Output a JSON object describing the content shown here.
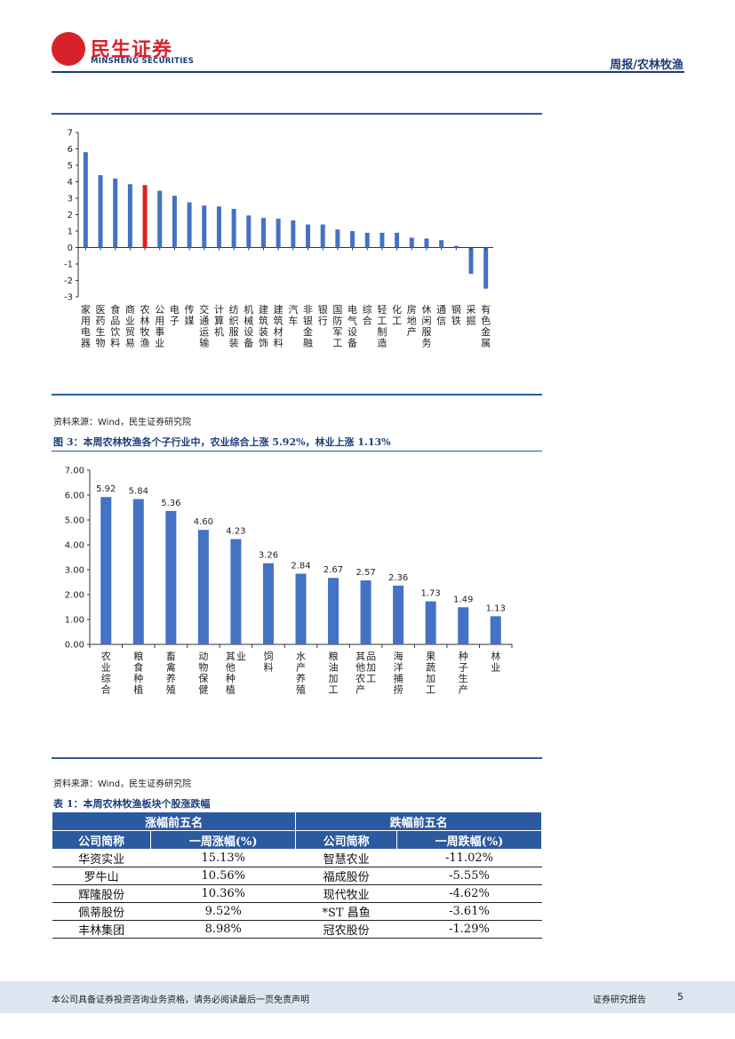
{
  "header": {
    "logo_cn": "民生证券",
    "logo_en": "MINSHENG SECURITIES",
    "title": "周报/农林牧渔"
  },
  "chart1": {
    "type": "bar",
    "categories": [
      "家用电器",
      "医药生物",
      "食品饮料",
      "商业贸易",
      "农林牧渔",
      "公用事业",
      "电子",
      "传媒",
      "交通运输",
      "计算机",
      "纺织服装",
      "机械设备",
      "建筑装饰",
      "建筑材料",
      "汽车",
      "非银金融",
      "银行",
      "国防军工",
      "电气设备",
      "综合",
      "轻工制造",
      "化工",
      "房地产",
      "休闲服务",
      "通信",
      "钢铁",
      "采掘",
      "有色金属"
    ],
    "values": [
      5.8,
      4.4,
      4.2,
      3.85,
      3.8,
      3.45,
      3.15,
      2.75,
      2.55,
      2.5,
      2.35,
      1.95,
      1.8,
      1.75,
      1.65,
      1.4,
      1.4,
      1.1,
      1.0,
      0.9,
      0.9,
      0.9,
      0.6,
      0.55,
      0.45,
      0.1,
      -1.6,
      -2.5
    ],
    "highlight_index": 4,
    "bar_color": "#4472c4",
    "highlight_color": "#e02020",
    "ylim": [
      -3,
      7
    ],
    "yticks": [
      "7",
      "6",
      "5",
      "4",
      "3",
      "2",
      "1",
      "0",
      "-1",
      "-2",
      "-3"
    ]
  },
  "source1": "资料来源：Wind，民生证券研究院",
  "caption2": "图 3：本周农林牧渔各个子行业中，农业综合上涨 5.92%，林业上涨 1.13%",
  "chart2": {
    "type": "bar",
    "categories": [
      "农业综合",
      "粮食种植",
      "畜禽养殖",
      "动物保健",
      "其他种植业",
      "饲料",
      "水产养殖",
      "粮油加工",
      "其他农产品加工",
      "海洋捕捞",
      "果蔬加工",
      "种子生产",
      "林业"
    ],
    "values": [
      5.92,
      5.84,
      5.36,
      4.6,
      4.23,
      3.26,
      2.84,
      2.67,
      2.57,
      2.36,
      1.73,
      1.49,
      1.13
    ],
    "labels": [
      "5.92",
      "5.84",
      "5.36",
      "4.60",
      "4.23",
      "3.26",
      "2.84",
      "2.67",
      "2.57",
      "2.36",
      "1.73",
      "1.49",
      "1.13"
    ],
    "bar_color": "#4472c4",
    "ylim": [
      0,
      7
    ],
    "yticks": [
      "7.00",
      "6.00",
      "5.00",
      "4.00",
      "3.00",
      "2.00",
      "1.00",
      "0.00"
    ]
  },
  "source2": "资料来源：Wind，民生证券研究院",
  "caption3": "表 1：本周农林牧渔板块个股涨跌幅",
  "table": {
    "group_up": "涨幅前五名",
    "group_down": "跌幅前五名",
    "col_name": "公司简称",
    "col_up": "一周涨幅(%)",
    "col_down": "一周跌幅(%)",
    "rows": [
      {
        "up_name": "华资实业",
        "up_val": "15.13%",
        "down_name": "智慧农业",
        "down_val": "-11.02%"
      },
      {
        "up_name": "罗牛山",
        "up_val": "10.56%",
        "down_name": "福成股份",
        "down_val": "-5.55%"
      },
      {
        "up_name": "辉隆股份",
        "up_val": "10.36%",
        "down_name": "现代牧业",
        "down_val": "-4.62%"
      },
      {
        "up_name": "佩蒂股份",
        "up_val": "9.52%",
        "down_name": "*ST 昌鱼",
        "down_val": "-3.61%"
      },
      {
        "up_name": "丰林集团",
        "up_val": "8.98%",
        "down_name": "冠农股份",
        "down_val": "-1.29%"
      }
    ]
  },
  "footer": {
    "disclaimer": "本公司具备证券投资咨询业务资格，请务必阅读最后一页免责声明",
    "report_type": "证券研究报告",
    "page": "5"
  }
}
